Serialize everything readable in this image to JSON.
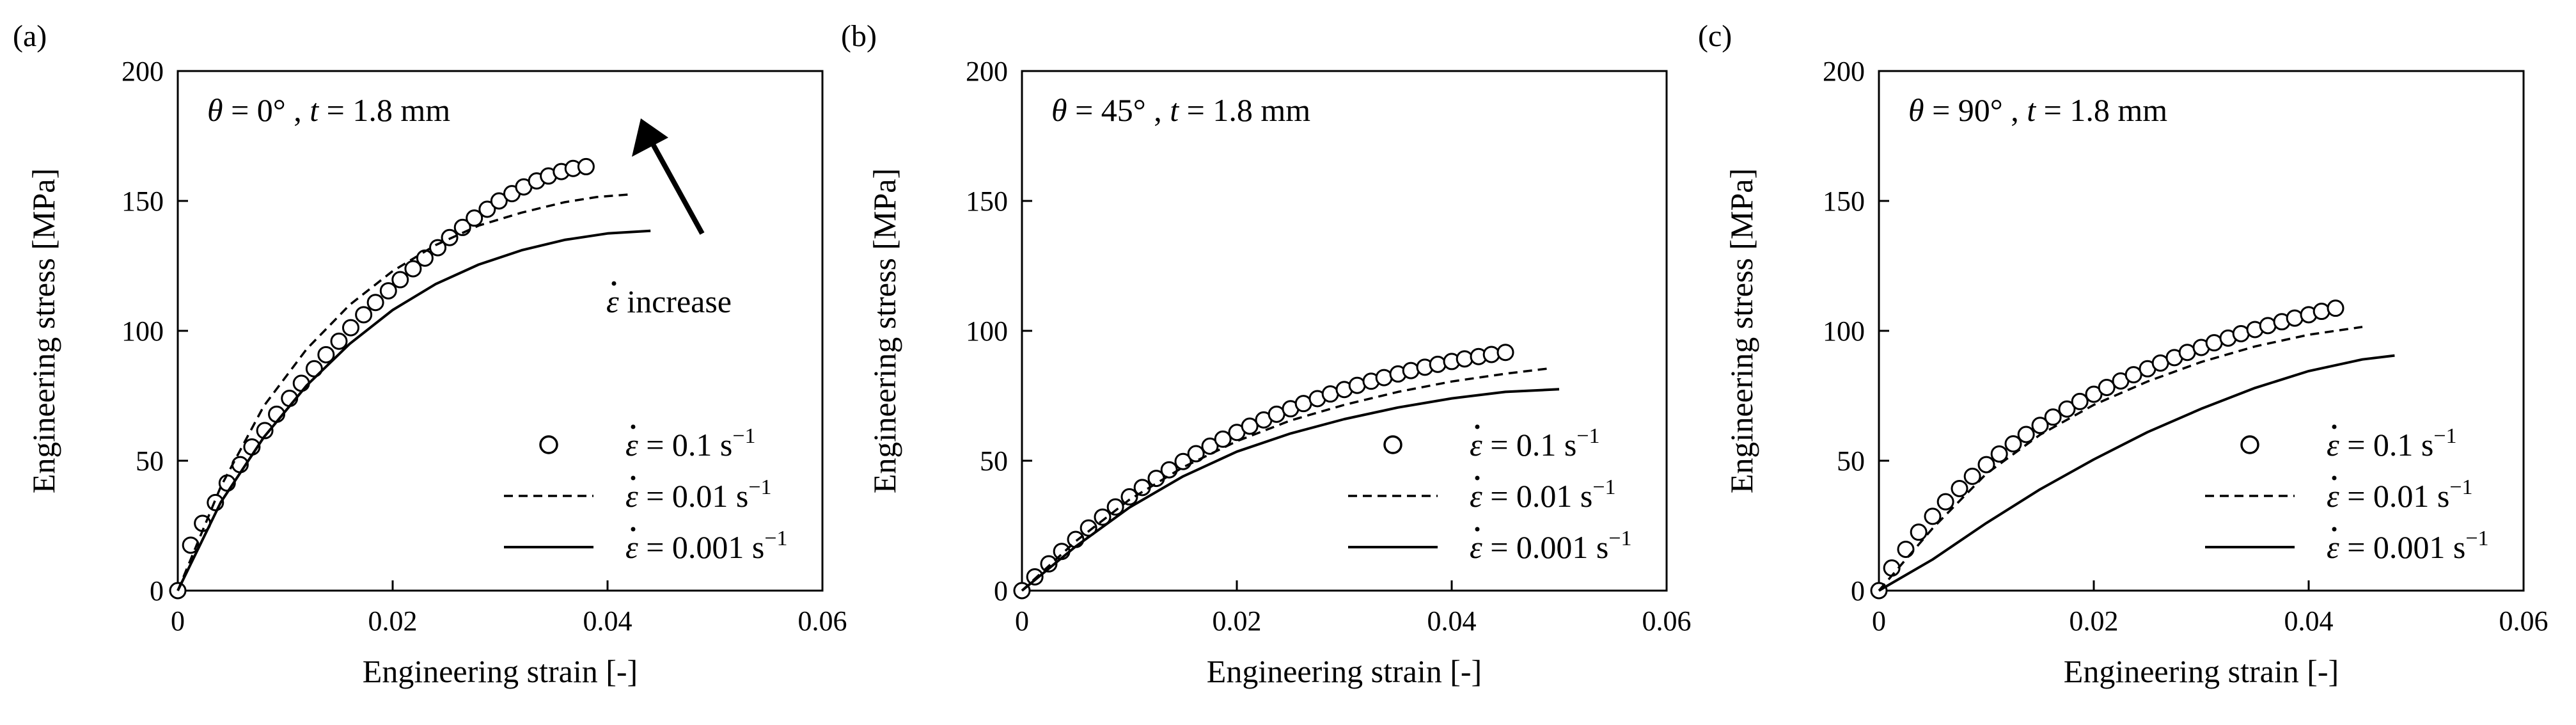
{
  "chart_data": [
    {
      "type": "scatter",
      "panel_label": "(a)",
      "annotation": {
        "theta": "0°",
        "t": "1.8 mm"
      },
      "arrow_label": "increase",
      "xlabel": "Engineering strain [-]",
      "ylabel": "Engineering stress [MPa]",
      "xlim": [
        0,
        0.06
      ],
      "ylim": [
        0,
        200
      ],
      "xticks": [
        0,
        0.02,
        0.04,
        0.06
      ],
      "xtick_labels": [
        "0",
        "0.02",
        "0.04",
        "0.06"
      ],
      "yticks": [
        0,
        50,
        100,
        150,
        200
      ],
      "ytick_labels": [
        "0",
        "50",
        "100",
        "150",
        "200"
      ],
      "legend_position": "bottom-right",
      "series": [
        {
          "name": "= 0.1 s",
          "rate_value": "0.1",
          "unit_exp": "−1",
          "style": "circles",
          "x": [
            0,
            0.0012,
            0.0023,
            0.0035,
            0.0046,
            0.0058,
            0.0069,
            0.0081,
            0.0092,
            0.0104,
            0.0115,
            0.0127,
            0.0138,
            0.015,
            0.0161,
            0.0173,
            0.0184,
            0.0196,
            0.0207,
            0.0219,
            0.023,
            0.0242,
            0.0253,
            0.0265,
            0.0276,
            0.0288,
            0.0299,
            0.0311,
            0.0322,
            0.0334,
            0.0345,
            0.0357,
            0.0368,
            0.038
          ],
          "y": [
            0,
            17.5,
            25.9,
            33.9,
            41.4,
            48.5,
            55.3,
            61.6,
            67.9,
            74,
            79.8,
            85.4,
            90.8,
            96,
            101.2,
            106.2,
            110.9,
            115.4,
            119.7,
            123.9,
            128,
            132,
            135.9,
            139.8,
            143.4,
            146.8,
            150,
            152.8,
            155.4,
            157.7,
            159.6,
            161.3,
            162.5,
            163.2
          ]
        },
        {
          "name": "= 0.01 s",
          "rate_value": "0.01",
          "unit_exp": "−1",
          "style": "dashed",
          "x": [
            0,
            0.004,
            0.008,
            0.012,
            0.016,
            0.02,
            0.024,
            0.028,
            0.032,
            0.036,
            0.039,
            0.042
          ],
          "y": [
            0,
            40,
            71,
            93,
            110,
            123,
            133,
            140.5,
            145.5,
            149.5,
            151.5,
            152.5
          ]
        },
        {
          "name": "= 0.001 s",
          "rate_value": "0.001",
          "unit_exp": "−1",
          "style": "solid",
          "x": [
            0,
            0.004,
            0.008,
            0.012,
            0.016,
            0.02,
            0.024,
            0.028,
            0.032,
            0.036,
            0.04,
            0.044
          ],
          "y": [
            0,
            34,
            59,
            79,
            95,
            108,
            118,
            125.5,
            131,
            135,
            137.5,
            138.5
          ]
        }
      ]
    },
    {
      "type": "scatter",
      "panel_label": "(b)",
      "annotation": {
        "theta": "45°",
        "t": "1.8 mm"
      },
      "arrow_label": "",
      "xlabel": "Engineering strain [-]",
      "ylabel": "Engineering stress [MPa]",
      "xlim": [
        0,
        0.06
      ],
      "ylim": [
        0,
        200
      ],
      "xticks": [
        0,
        0.02,
        0.04,
        0.06
      ],
      "xtick_labels": [
        "0",
        "0.02",
        "0.04",
        "0.06"
      ],
      "yticks": [
        0,
        50,
        100,
        150,
        200
      ],
      "ytick_labels": [
        "0",
        "50",
        "100",
        "150",
        "200"
      ],
      "legend_position": "bottom-right",
      "series": [
        {
          "name": "= 0.1 s",
          "rate_value": "0.1",
          "unit_exp": "−1",
          "style": "circles",
          "x": [
            0,
            0.0012,
            0.0025,
            0.0037,
            0.005,
            0.0062,
            0.0075,
            0.0087,
            0.01,
            0.0112,
            0.0125,
            0.0137,
            0.015,
            0.0162,
            0.0175,
            0.0187,
            0.02,
            0.0212,
            0.0225,
            0.0237,
            0.025,
            0.0262,
            0.0275,
            0.0287,
            0.03,
            0.0312,
            0.0325,
            0.0337,
            0.035,
            0.0362,
            0.0375,
            0.0387,
            0.04,
            0.0412,
            0.0425,
            0.0437,
            0.045
          ],
          "y": [
            0,
            5.3,
            10.3,
            15.1,
            19.7,
            24.1,
            28.3,
            32.2,
            36.1,
            39.7,
            43.2,
            46.5,
            49.7,
            52.7,
            55.6,
            58.3,
            60.9,
            63.3,
            65.7,
            67.9,
            70,
            72,
            73.9,
            75.7,
            77.4,
            79,
            80.6,
            82,
            83.4,
            84.7,
            86,
            87.1,
            88.2,
            89.2,
            90.1,
            90.9,
            91.7
          ]
        },
        {
          "name": "= 0.01 s",
          "rate_value": "0.01",
          "unit_exp": "−1",
          "style": "dashed",
          "x": [
            0,
            0.005,
            0.01,
            0.015,
            0.02,
            0.025,
            0.03,
            0.035,
            0.04,
            0.045,
            0.049
          ],
          "y": [
            0,
            19,
            35,
            47.5,
            57.5,
            65.5,
            71.5,
            76.5,
            80.5,
            83.5,
            85.5
          ]
        },
        {
          "name": "= 0.001 s",
          "rate_value": "0.001",
          "unit_exp": "−1",
          "style": "solid",
          "x": [
            0,
            0.005,
            0.01,
            0.015,
            0.02,
            0.025,
            0.03,
            0.035,
            0.04,
            0.045,
            0.05
          ],
          "y": [
            0,
            17,
            32,
            44,
            53.5,
            60.5,
            66,
            70.5,
            74,
            76.5,
            77.5
          ]
        }
      ]
    },
    {
      "type": "scatter",
      "panel_label": "(c)",
      "annotation": {
        "theta": "90°",
        "t": "1.8 mm"
      },
      "arrow_label": "",
      "xlabel": "Engineering strain [-]",
      "ylabel": "Engineering stress [MPa]",
      "xlim": [
        0,
        0.06
      ],
      "ylim": [
        0,
        200
      ],
      "xticks": [
        0,
        0.02,
        0.04,
        0.06
      ],
      "xtick_labels": [
        "0",
        "0.02",
        "0.04",
        "0.06"
      ],
      "yticks": [
        0,
        50,
        100,
        150,
        200
      ],
      "ytick_labels": [
        "0",
        "50",
        "100",
        "150",
        "200"
      ],
      "legend_position": "bottom-right",
      "series": [
        {
          "name": "= 0.1 s",
          "rate_value": "0.1",
          "unit_exp": "−1",
          "style": "circles",
          "x": [
            0,
            0.0012,
            0.0025,
            0.0037,
            0.005,
            0.0062,
            0.0075,
            0.0087,
            0.01,
            0.0112,
            0.0125,
            0.0137,
            0.015,
            0.0162,
            0.0175,
            0.0187,
            0.02,
            0.0212,
            0.0225,
            0.0237,
            0.025,
            0.0262,
            0.0275,
            0.0287,
            0.03,
            0.0312,
            0.0325,
            0.0337,
            0.035,
            0.0362,
            0.0375,
            0.0387,
            0.04,
            0.0412,
            0.0425
          ],
          "y": [
            0,
            8.7,
            15.9,
            22.5,
            28.6,
            34.2,
            39.3,
            44,
            48.5,
            52.6,
            56.5,
            60.1,
            63.6,
            66.8,
            69.9,
            72.8,
            75.6,
            78.2,
            80.7,
            83.1,
            85.4,
            87.6,
            89.7,
            91.7,
            93.6,
            95.4,
            97.2,
            98.9,
            100.5,
            102,
            103.5,
            104.9,
            106.2,
            107.5,
            108.7
          ]
        },
        {
          "name": "= 0.01 s",
          "rate_value": "0.01",
          "unit_exp": "−1",
          "style": "dashed",
          "x": [
            0,
            0.005,
            0.01,
            0.015,
            0.02,
            0.025,
            0.03,
            0.035,
            0.04,
            0.045
          ],
          "y": [
            0,
            24,
            45,
            60,
            71.5,
            80.5,
            88,
            94,
            98.5,
            101.5
          ]
        },
        {
          "name": "= 0.001 s",
          "rate_value": "0.001",
          "unit_exp": "−1",
          "style": "solid",
          "x": [
            0,
            0.005,
            0.01,
            0.015,
            0.02,
            0.025,
            0.03,
            0.035,
            0.04,
            0.045,
            0.048
          ],
          "y": [
            0,
            12,
            26,
            39,
            50.5,
            61,
            70,
            78,
            84.5,
            89,
            90.5
          ]
        }
      ]
    }
  ]
}
